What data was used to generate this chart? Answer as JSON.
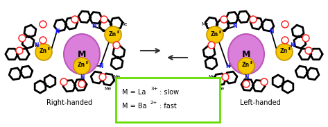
{
  "background": "#ffffff",
  "M_color": "#da7fda",
  "M_edge_color": "#bb55bb",
  "Zn_color": "#f5c800",
  "Zn_edge_color": "#c89600",
  "N_color": "#1a1aff",
  "O_color": "#ff2020",
  "bond_color": "#111111",
  "arrow_color": "#333333",
  "box_color": "#66dd00",
  "text_color": "#000000",
  "right_label": "Right-handed",
  "left_label": "Left-handed",
  "legend_la": "M = La",
  "legend_la_sup": "3+",
  "legend_la_end": ": slow",
  "legend_ba": "M = Ba",
  "legend_ba_sup": "2+",
  "legend_ba_end": ": fast",
  "figsize": [
    4.73,
    1.83
  ],
  "dpi": 100
}
